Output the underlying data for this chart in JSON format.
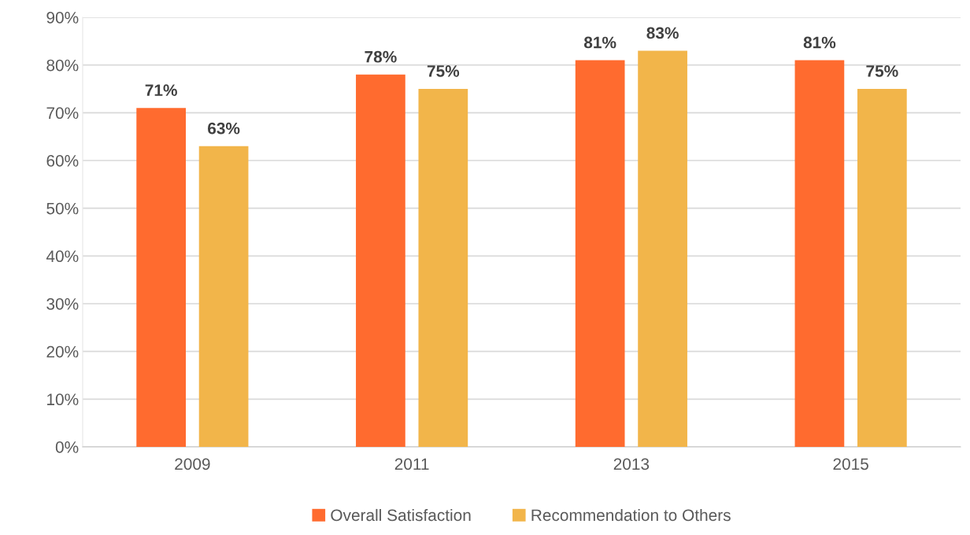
{
  "chart_data": {
    "type": "bar",
    "categories": [
      "2009",
      "2011",
      "2013",
      "2015"
    ],
    "series": [
      {
        "name": "Overall Satisfaction",
        "color": "#ff6b2f",
        "values": [
          71,
          78,
          81,
          81
        ],
        "value_labels": [
          "71%",
          "78%",
          "81%",
          "81%"
        ]
      },
      {
        "name": "Recommendation to Others",
        "color": "#f2b54a",
        "values": [
          63,
          75,
          83,
          75
        ],
        "value_labels": [
          "63%",
          "75%",
          "83%",
          "75%"
        ]
      }
    ],
    "ylim": [
      0,
      90
    ],
    "yticks": [
      {
        "value": 0,
        "label": "0%"
      },
      {
        "value": 10,
        "label": "10%"
      },
      {
        "value": 20,
        "label": "20%"
      },
      {
        "value": 30,
        "label": "30%"
      },
      {
        "value": 40,
        "label": "40%"
      },
      {
        "value": 50,
        "label": "50%"
      },
      {
        "value": 60,
        "label": "60%"
      },
      {
        "value": 70,
        "label": "70%"
      },
      {
        "value": 80,
        "label": "80%"
      },
      {
        "value": 90,
        "label": "90%"
      }
    ],
    "grid": "y",
    "legend": "bottom"
  }
}
